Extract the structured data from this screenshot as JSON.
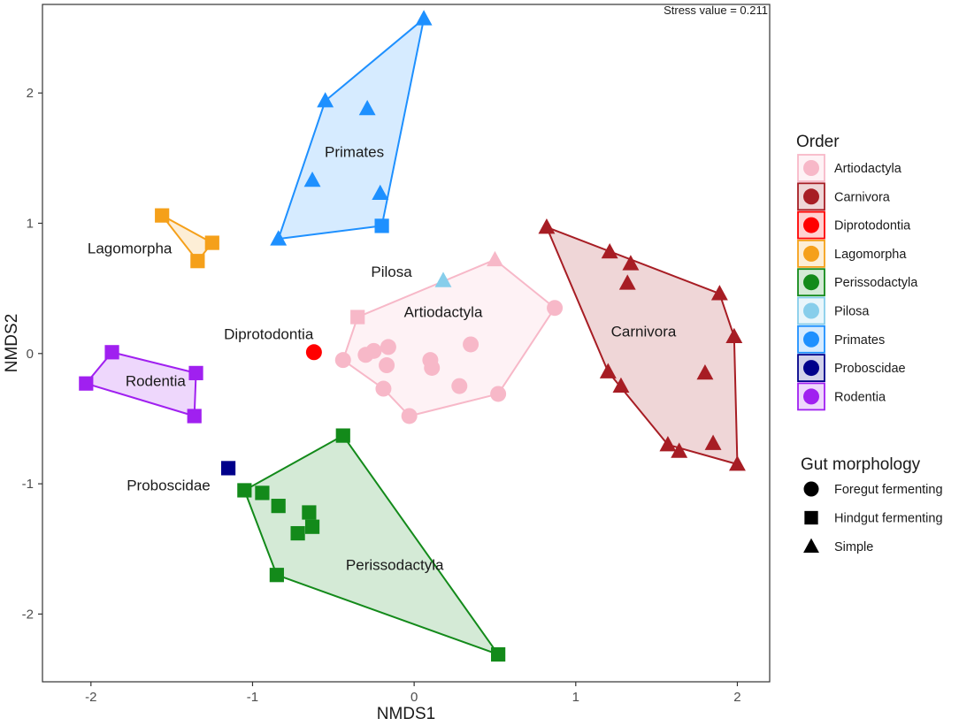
{
  "chart_data": {
    "type": "scatter",
    "xlabel": "NMDS1",
    "ylabel": "NMDS2",
    "xlim": [
      -2.3,
      2.2
    ],
    "ylim": [
      -2.52,
      2.68
    ],
    "xticks": [
      -2,
      -1,
      0,
      1,
      2
    ],
    "yticks": [
      -2,
      -1,
      0,
      1,
      2
    ],
    "annotation": "Stress value = 0.211",
    "colors": {
      "Artiodactyla": "#F7B8C8",
      "Carnivora": "#A71D24",
      "Diprotodontia": "#FF0000",
      "Lagomorpha": "#F5A01A",
      "Perissodactyla": "#138A1A",
      "Pilosa": "#87CEEB",
      "Primates": "#1E90FF",
      "Proboscidae": "#00008B",
      "Rodentia": "#A020F0"
    },
    "legend_order": {
      "title": "Order",
      "items": [
        "Artiodactyla",
        "Carnivora",
        "Diprotodontia",
        "Lagomorpha",
        "Perissodactyla",
        "Pilosa",
        "Primates",
        "Proboscidae",
        "Rodentia"
      ]
    },
    "legend_shape": {
      "title": "Gut morphology",
      "items": [
        {
          "label": "Foregut fermenting",
          "shape": "circle"
        },
        {
          "label": "Hindgut fermenting",
          "shape": "square"
        },
        {
          "label": "Simple",
          "shape": "triangle"
        }
      ]
    },
    "hull_labels": [
      {
        "text": "Primates",
        "x": -0.37,
        "y": 1.55
      },
      {
        "text": "Lagomorpha",
        "x": -1.76,
        "y": 0.81
      },
      {
        "text": "Pilosa",
        "x": -0.14,
        "y": 0.63
      },
      {
        "text": "Artiodactyla",
        "x": 0.18,
        "y": 0.32
      },
      {
        "text": "Carnivora",
        "x": 1.42,
        "y": 0.17
      },
      {
        "text": "Diprotodontia",
        "x": -0.9,
        "y": 0.15
      },
      {
        "text": "Rodentia",
        "x": -1.6,
        "y": -0.21
      },
      {
        "text": "Proboscidae",
        "x": -1.52,
        "y": -1.01
      },
      {
        "text": "Perissodactyla",
        "x": -0.12,
        "y": -1.62
      }
    ],
    "series": [
      {
        "name": "Primates",
        "points": [
          {
            "x": 0.06,
            "y": 2.57,
            "shape": "triangle"
          },
          {
            "x": -0.55,
            "y": 1.94,
            "shape": "triangle"
          },
          {
            "x": -0.29,
            "y": 1.88,
            "shape": "triangle"
          },
          {
            "x": -0.63,
            "y": 1.33,
            "shape": "triangle"
          },
          {
            "x": -0.21,
            "y": 1.23,
            "shape": "triangle"
          },
          {
            "x": -0.84,
            "y": 0.88,
            "shape": "triangle"
          },
          {
            "x": -0.2,
            "y": 0.98,
            "shape": "square"
          }
        ]
      },
      {
        "name": "Lagomorpha",
        "points": [
          {
            "x": -1.56,
            "y": 1.06,
            "shape": "square"
          },
          {
            "x": -1.25,
            "y": 0.85,
            "shape": "square"
          },
          {
            "x": -1.34,
            "y": 0.71,
            "shape": "square"
          }
        ]
      },
      {
        "name": "Pilosa",
        "points": [
          {
            "x": 0.18,
            "y": 0.56,
            "shape": "triangle"
          }
        ]
      },
      {
        "name": "Artiodactyla",
        "points": [
          {
            "x": 0.5,
            "y": 0.72,
            "shape": "triangle"
          },
          {
            "x": -0.35,
            "y": 0.28,
            "shape": "square"
          },
          {
            "x": 0.87,
            "y": 0.35,
            "shape": "circle"
          },
          {
            "x": -0.44,
            "y": -0.05,
            "shape": "circle"
          },
          {
            "x": -0.3,
            "y": -0.01,
            "shape": "circle"
          },
          {
            "x": -0.25,
            "y": 0.02,
            "shape": "circle"
          },
          {
            "x": -0.16,
            "y": 0.05,
            "shape": "circle"
          },
          {
            "x": -0.17,
            "y": -0.09,
            "shape": "circle"
          },
          {
            "x": 0.1,
            "y": -0.05,
            "shape": "circle"
          },
          {
            "x": 0.11,
            "y": -0.11,
            "shape": "circle"
          },
          {
            "x": 0.35,
            "y": 0.07,
            "shape": "circle"
          },
          {
            "x": -0.19,
            "y": -0.27,
            "shape": "circle"
          },
          {
            "x": 0.28,
            "y": -0.25,
            "shape": "circle"
          },
          {
            "x": 0.52,
            "y": -0.31,
            "shape": "circle"
          },
          {
            "x": -0.03,
            "y": -0.48,
            "shape": "circle"
          }
        ]
      },
      {
        "name": "Diprotodontia",
        "points": [
          {
            "x": -0.62,
            "y": 0.01,
            "shape": "circle"
          }
        ]
      },
      {
        "name": "Carnivora",
        "points": [
          {
            "x": 0.82,
            "y": 0.97,
            "shape": "triangle"
          },
          {
            "x": 1.21,
            "y": 0.78,
            "shape": "triangle"
          },
          {
            "x": 1.34,
            "y": 0.69,
            "shape": "triangle"
          },
          {
            "x": 1.32,
            "y": 0.54,
            "shape": "triangle"
          },
          {
            "x": 1.89,
            "y": 0.46,
            "shape": "triangle"
          },
          {
            "x": 1.98,
            "y": 0.13,
            "shape": "triangle"
          },
          {
            "x": 1.2,
            "y": -0.14,
            "shape": "triangle"
          },
          {
            "x": 1.28,
            "y": -0.25,
            "shape": "triangle"
          },
          {
            "x": 1.8,
            "y": -0.15,
            "shape": "triangle"
          },
          {
            "x": 1.57,
            "y": -0.7,
            "shape": "triangle"
          },
          {
            "x": 1.64,
            "y": -0.75,
            "shape": "triangle"
          },
          {
            "x": 1.85,
            "y": -0.69,
            "shape": "triangle"
          },
          {
            "x": 2.0,
            "y": -0.85,
            "shape": "triangle"
          }
        ]
      },
      {
        "name": "Rodentia",
        "points": [
          {
            "x": -1.87,
            "y": 0.01,
            "shape": "square"
          },
          {
            "x": -2.03,
            "y": -0.23,
            "shape": "square"
          },
          {
            "x": -1.35,
            "y": -0.15,
            "shape": "square"
          },
          {
            "x": -1.36,
            "y": -0.48,
            "shape": "square"
          }
        ]
      },
      {
        "name": "Proboscidae",
        "points": [
          {
            "x": -1.15,
            "y": -0.88,
            "shape": "square"
          }
        ]
      },
      {
        "name": "Perissodactyla",
        "points": [
          {
            "x": -0.44,
            "y": -0.63,
            "shape": "square"
          },
          {
            "x": -1.05,
            "y": -1.05,
            "shape": "square"
          },
          {
            "x": -0.94,
            "y": -1.07,
            "shape": "square"
          },
          {
            "x": -0.84,
            "y": -1.17,
            "shape": "square"
          },
          {
            "x": -0.65,
            "y": -1.22,
            "shape": "square"
          },
          {
            "x": -0.63,
            "y": -1.33,
            "shape": "square"
          },
          {
            "x": -0.72,
            "y": -1.38,
            "shape": "square"
          },
          {
            "x": -0.85,
            "y": -1.7,
            "shape": "square"
          },
          {
            "x": 0.52,
            "y": -2.31,
            "shape": "square"
          }
        ]
      }
    ],
    "hulls": [
      {
        "name": "Primates",
        "vertices": [
          [
            0.06,
            2.57
          ],
          [
            -0.2,
            0.98
          ],
          [
            -0.84,
            0.88
          ],
          [
            -0.55,
            1.94
          ]
        ]
      },
      {
        "name": "Lagomorpha",
        "vertices": [
          [
            -1.56,
            1.06
          ],
          [
            -1.25,
            0.85
          ],
          [
            -1.34,
            0.71
          ]
        ]
      },
      {
        "name": "Artiodactyla",
        "vertices": [
          [
            -0.35,
            0.28
          ],
          [
            0.5,
            0.72
          ],
          [
            0.87,
            0.35
          ],
          [
            0.52,
            -0.31
          ],
          [
            -0.03,
            -0.48
          ],
          [
            -0.19,
            -0.27
          ],
          [
            -0.44,
            -0.05
          ]
        ]
      },
      {
        "name": "Carnivora",
        "vertices": [
          [
            0.82,
            0.97
          ],
          [
            1.89,
            0.46
          ],
          [
            1.98,
            0.13
          ],
          [
            2.0,
            -0.85
          ],
          [
            1.57,
            -0.7
          ],
          [
            1.2,
            -0.14
          ]
        ]
      },
      {
        "name": "Rodentia",
        "vertices": [
          [
            -1.87,
            0.01
          ],
          [
            -1.35,
            -0.15
          ],
          [
            -1.36,
            -0.48
          ],
          [
            -2.03,
            -0.23
          ]
        ]
      },
      {
        "name": "Perissodactyla",
        "vertices": [
          [
            -0.44,
            -0.63
          ],
          [
            0.52,
            -2.31
          ],
          [
            -0.85,
            -1.7
          ],
          [
            -1.05,
            -1.05
          ]
        ]
      }
    ]
  }
}
